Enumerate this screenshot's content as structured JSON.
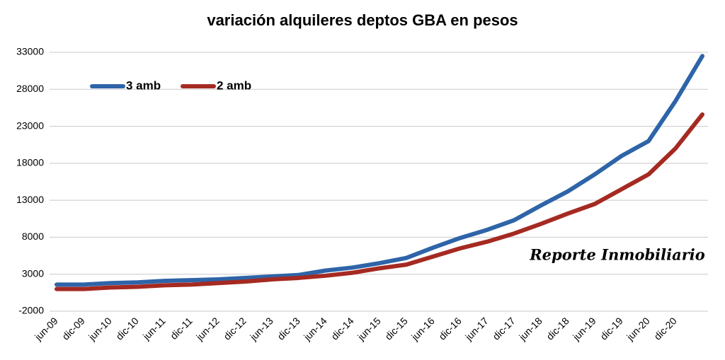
{
  "chart_data": {
    "type": "line",
    "title": "variación alquileres deptos GBA en pesos",
    "annotation": "Reporte Inmobiliario",
    "categories": [
      "jun-09",
      "dic-09",
      "jun-10",
      "dic-10",
      "jun-11",
      "dic-11",
      "jun-12",
      "dic-12",
      "jun-13",
      "dic-13",
      "jun-14",
      "dic-14",
      "jun-15",
      "dic-15",
      "jun-16",
      "dic-16",
      "jun-17",
      "dic-17",
      "jun-18",
      "dic-18",
      "jun-19",
      "dic-19",
      "jun-20",
      "dic-20",
      null
    ],
    "series": [
      {
        "name": "3 amb",
        "color": "#2e64a8",
        "values": [
          1600,
          1600,
          1800,
          1900,
          2100,
          2200,
          2300,
          2500,
          2700,
          2900,
          3500,
          3900,
          4500,
          5200,
          6600,
          7900,
          9000,
          10300,
          12300,
          14200,
          16500,
          19000,
          21000,
          26400,
          32500
        ]
      },
      {
        "name": "2 amb",
        "color": "#a52a22",
        "values": [
          1000,
          1000,
          1200,
          1300,
          1500,
          1600,
          1800,
          2000,
          2300,
          2500,
          2800,
          3200,
          3800,
          4300,
          5400,
          6500,
          7400,
          8500,
          9800,
          11200,
          12500,
          14500,
          16500,
          20000,
          24600
        ]
      }
    ],
    "ylim": [
      -2000,
      33000
    ],
    "yticks": [
      -2000,
      3000,
      8000,
      13000,
      18000,
      23000,
      28000,
      33000
    ],
    "grid": true,
    "legend": "top-left"
  }
}
